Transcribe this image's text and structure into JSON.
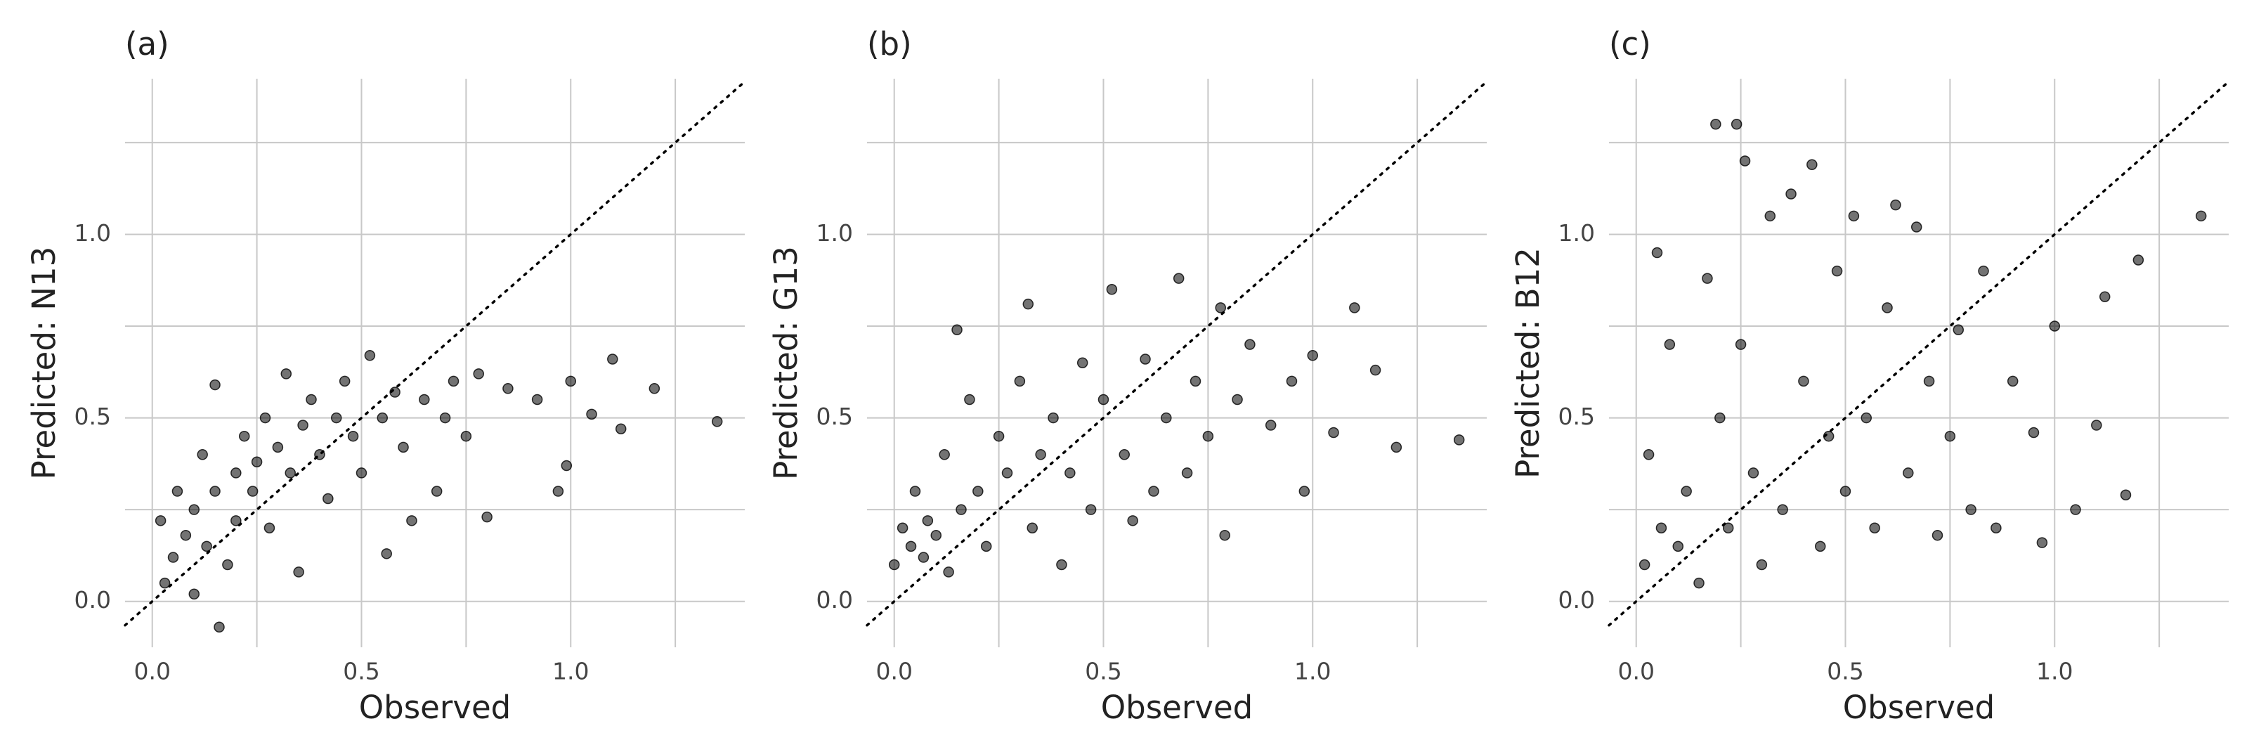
{
  "chart_data": [
    {
      "type": "scatter",
      "title": "(a)",
      "x_label": "Observed",
      "y_label": "Predicted: N13",
      "color": "#000000",
      "alpha": 0.55,
      "identity_line": true,
      "grid": true,
      "xlim": [
        -0.065,
        1.416
      ],
      "ylim": [
        -0.125,
        1.424
      ],
      "xticks": [
        {
          "value": 0,
          "label": "0.0"
        },
        {
          "value": 0.5,
          "label": "0.5"
        },
        {
          "value": 1,
          "label": "1.0"
        }
      ],
      "yticks": [
        {
          "value": 0,
          "label": "0.0"
        },
        {
          "value": 0.5,
          "label": "0.5"
        },
        {
          "value": 1,
          "label": "1.0"
        }
      ],
      "minor_xticks": [
        0.25,
        0.75,
        1.25
      ],
      "minor_yticks": [
        0.25,
        0.75,
        1.25
      ],
      "x": [
        0.02,
        0.03,
        0.05,
        0.06,
        0.08,
        0.1,
        0.1,
        0.12,
        0.13,
        0.15,
        0.15,
        0.16,
        0.18,
        0.2,
        0.2,
        0.22,
        0.24,
        0.25,
        0.27,
        0.28,
        0.3,
        0.32,
        0.33,
        0.35,
        0.36,
        0.38,
        0.4,
        0.42,
        0.44,
        0.46,
        0.48,
        0.5,
        0.52,
        0.55,
        0.56,
        0.58,
        0.6,
        0.62,
        0.65,
        0.68,
        0.7,
        0.72,
        0.75,
        0.78,
        0.8,
        0.85,
        0.92,
        0.97,
        0.99,
        1.0,
        1.05,
        1.1,
        1.12,
        1.2,
        1.35
      ],
      "y": [
        0.22,
        0.05,
        0.12,
        0.3,
        0.18,
        0.02,
        0.25,
        0.4,
        0.15,
        0.59,
        0.3,
        -0.07,
        0.1,
        0.35,
        0.22,
        0.45,
        0.3,
        0.38,
        0.5,
        0.2,
        0.42,
        0.62,
        0.35,
        0.08,
        0.48,
        0.55,
        0.4,
        0.28,
        0.5,
        0.6,
        0.45,
        0.35,
        0.67,
        0.5,
        0.13,
        0.57,
        0.42,
        0.22,
        0.55,
        0.3,
        0.5,
        0.6,
        0.45,
        0.62,
        0.23,
        0.58,
        0.55,
        0.3,
        0.37,
        0.6,
        0.51,
        0.66,
        0.47,
        0.58,
        0.49
      ]
    },
    {
      "type": "scatter",
      "title": "(b)",
      "x_label": "Observed",
      "y_label": "Predicted: G13",
      "color": "#000000",
      "alpha": 0.55,
      "identity_line": true,
      "grid": true,
      "xlim": [
        -0.065,
        1.416
      ],
      "ylim": [
        -0.125,
        1.424
      ],
      "xticks": [
        {
          "value": 0,
          "label": "0.0"
        },
        {
          "value": 0.5,
          "label": "0.5"
        },
        {
          "value": 1,
          "label": "1.0"
        }
      ],
      "yticks": [
        {
          "value": 0,
          "label": "0.0"
        },
        {
          "value": 0.5,
          "label": "0.5"
        },
        {
          "value": 1,
          "label": "1.0"
        }
      ],
      "minor_xticks": [
        0.25,
        0.75,
        1.25
      ],
      "minor_yticks": [
        0.25,
        0.75,
        1.25
      ],
      "x": [
        0.0,
        0.02,
        0.04,
        0.05,
        0.07,
        0.08,
        0.1,
        0.12,
        0.13,
        0.15,
        0.16,
        0.18,
        0.2,
        0.22,
        0.25,
        0.27,
        0.3,
        0.32,
        0.33,
        0.35,
        0.38,
        0.4,
        0.42,
        0.45,
        0.47,
        0.5,
        0.52,
        0.55,
        0.57,
        0.6,
        0.62,
        0.65,
        0.68,
        0.7,
        0.72,
        0.75,
        0.78,
        0.79,
        0.82,
        0.85,
        0.9,
        0.95,
        0.98,
        1.0,
        1.05,
        1.1,
        1.15,
        1.2,
        1.35
      ],
      "y": [
        0.1,
        0.2,
        0.15,
        0.3,
        0.12,
        0.22,
        0.18,
        0.4,
        0.08,
        0.74,
        0.25,
        0.55,
        0.3,
        0.15,
        0.45,
        0.35,
        0.6,
        0.81,
        0.2,
        0.4,
        0.5,
        0.1,
        0.35,
        0.65,
        0.25,
        0.55,
        0.85,
        0.4,
        0.22,
        0.66,
        0.3,
        0.5,
        0.88,
        0.35,
        0.6,
        0.45,
        0.8,
        0.18,
        0.55,
        0.7,
        0.48,
        0.6,
        0.3,
        0.67,
        0.46,
        0.8,
        0.63,
        0.42,
        0.44
      ]
    },
    {
      "type": "scatter",
      "title": "(c)",
      "x_label": "Observed",
      "y_label": "Predicted: B12",
      "color": "#000000",
      "alpha": 0.55,
      "identity_line": true,
      "grid": true,
      "xlim": [
        -0.065,
        1.416
      ],
      "ylim": [
        -0.125,
        1.424
      ],
      "xticks": [
        {
          "value": 0,
          "label": "0.0"
        },
        {
          "value": 0.5,
          "label": "0.5"
        },
        {
          "value": 1,
          "label": "1.0"
        }
      ],
      "yticks": [
        {
          "value": 0,
          "label": "0.0"
        },
        {
          "value": 0.5,
          "label": "0.5"
        },
        {
          "value": 1,
          "label": "1.0"
        }
      ],
      "minor_xticks": [
        0.25,
        0.75,
        1.25
      ],
      "minor_yticks": [
        0.25,
        0.75,
        1.25
      ],
      "x": [
        0.02,
        0.03,
        0.05,
        0.06,
        0.08,
        0.1,
        0.12,
        0.15,
        0.17,
        0.19,
        0.2,
        0.22,
        0.24,
        0.25,
        0.26,
        0.28,
        0.3,
        0.32,
        0.35,
        0.37,
        0.4,
        0.42,
        0.44,
        0.46,
        0.48,
        0.5,
        0.52,
        0.55,
        0.57,
        0.6,
        0.62,
        0.65,
        0.67,
        0.7,
        0.72,
        0.75,
        0.77,
        0.8,
        0.83,
        0.86,
        0.9,
        0.95,
        0.97,
        1.0,
        1.05,
        1.1,
        1.12,
        1.17,
        1.2,
        1.35
      ],
      "y": [
        0.1,
        0.4,
        0.95,
        0.2,
        0.7,
        0.15,
        0.3,
        0.05,
        0.88,
        1.3,
        0.5,
        0.2,
        1.3,
        0.7,
        1.2,
        0.35,
        0.1,
        1.05,
        0.25,
        1.11,
        0.6,
        1.19,
        0.15,
        0.45,
        0.9,
        0.3,
        1.05,
        0.5,
        0.2,
        0.8,
        1.08,
        0.35,
        1.02,
        0.6,
        0.18,
        0.45,
        0.74,
        0.25,
        0.9,
        0.2,
        0.6,
        0.46,
        0.16,
        0.75,
        0.25,
        0.48,
        0.83,
        0.29,
        0.93,
        1.05
      ]
    }
  ]
}
